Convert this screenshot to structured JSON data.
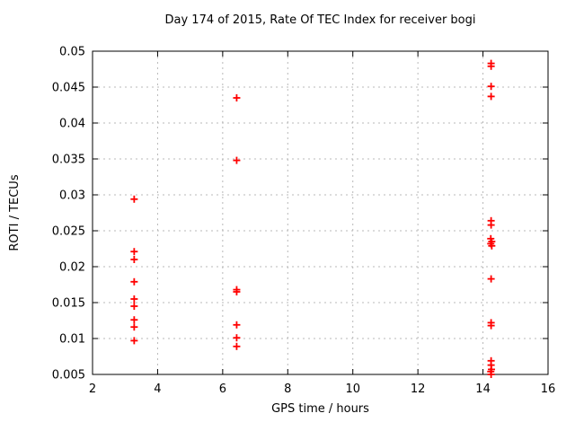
{
  "chart_data": {
    "type": "scatter",
    "title": "Day 174 of 2015, Rate Of TEC Index for receiver bogi",
    "xlabel": "GPS time / hours",
    "ylabel": "ROTI / TECUs",
    "xlim": [
      2,
      16
    ],
    "ylim": [
      0.005,
      0.05
    ],
    "x_ticks": [
      {
        "value": 2,
        "label": "2"
      },
      {
        "value": 4,
        "label": "4"
      },
      {
        "value": 6,
        "label": "6"
      },
      {
        "value": 8,
        "label": "8"
      },
      {
        "value": 10,
        "label": "10"
      },
      {
        "value": 12,
        "label": "12"
      },
      {
        "value": 14,
        "label": "14"
      },
      {
        "value": 16,
        "label": "16"
      }
    ],
    "y_ticks": [
      {
        "value": 0.005,
        "label": "0.005"
      },
      {
        "value": 0.01,
        "label": "0.01"
      },
      {
        "value": 0.015,
        "label": "0.015"
      },
      {
        "value": 0.02,
        "label": "0.02"
      },
      {
        "value": 0.025,
        "label": "0.025"
      },
      {
        "value": 0.03,
        "label": "0.03"
      },
      {
        "value": 0.035,
        "label": "0.035"
      },
      {
        "value": 0.04,
        "label": "0.04"
      },
      {
        "value": 0.045,
        "label": "0.045"
      },
      {
        "value": 0.05,
        "label": "0.05"
      }
    ],
    "grid": true,
    "legend_position": "none",
    "marker_style": "plus",
    "marker_color": "#ff0000",
    "grid_color": "#b8b8b8",
    "axis_color": "#000000",
    "series": [
      {
        "name": "ROTI",
        "points": [
          [
            3.28,
            0.0294
          ],
          [
            3.28,
            0.0221
          ],
          [
            3.28,
            0.021
          ],
          [
            3.28,
            0.0179
          ],
          [
            3.28,
            0.0155
          ],
          [
            3.28,
            0.0145
          ],
          [
            3.28,
            0.0126
          ],
          [
            3.28,
            0.0116
          ],
          [
            3.28,
            0.0097
          ],
          [
            6.43,
            0.0435
          ],
          [
            6.43,
            0.0348
          ],
          [
            6.43,
            0.0168
          ],
          [
            6.43,
            0.0165
          ],
          [
            6.43,
            0.0119
          ],
          [
            6.43,
            0.0101
          ],
          [
            6.43,
            0.0089
          ],
          [
            14.25,
            0.0483
          ],
          [
            14.25,
            0.0479
          ],
          [
            14.25,
            0.0451
          ],
          [
            14.25,
            0.0437
          ],
          [
            14.25,
            0.0264
          ],
          [
            14.25,
            0.0258
          ],
          [
            14.24,
            0.0239
          ],
          [
            14.27,
            0.0235
          ],
          [
            14.24,
            0.0232
          ],
          [
            14.27,
            0.0229
          ],
          [
            14.25,
            0.0183
          ],
          [
            14.25,
            0.0122
          ],
          [
            14.25,
            0.0118
          ],
          [
            14.25,
            0.0069
          ],
          [
            14.25,
            0.0063
          ],
          [
            14.26,
            0.0057
          ],
          [
            14.24,
            0.0054
          ],
          [
            14.25,
            0.005
          ]
        ]
      }
    ]
  }
}
